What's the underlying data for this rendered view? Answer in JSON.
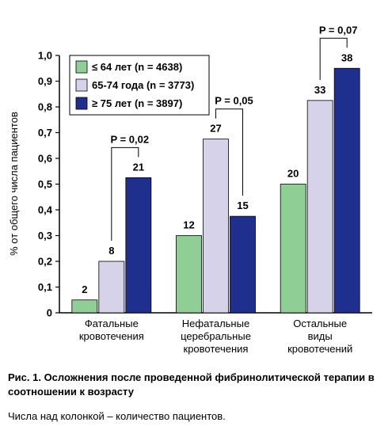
{
  "chart_data": {
    "type": "bar",
    "ylabel": "% от общего числа пациентов",
    "ylim": [
      0,
      1.0
    ],
    "yticks": [
      "0",
      "0,1",
      "0,2",
      "0,3",
      "0,4",
      "0,5",
      "0,6",
      "0,7",
      "0,8",
      "0,9",
      "1,0"
    ],
    "categories": [
      [
        "Фатальные",
        "кровотечения"
      ],
      [
        "Нефатальные",
        "церебральные",
        "кровотечения"
      ],
      [
        "Остальные",
        "виды",
        "кровотечений"
      ]
    ],
    "series": [
      {
        "name": "≤ 64 лет (n = 4638)",
        "color": "#8fcf96",
        "values": [
          0.05,
          0.3,
          0.5
        ],
        "labels": [
          "2",
          "12",
          "20"
        ]
      },
      {
        "name": "65-74 года (n = 3773)",
        "color": "#d6d2ea",
        "values": [
          0.2,
          0.675,
          0.825
        ],
        "labels": [
          "8",
          "27",
          "33"
        ]
      },
      {
        "name": "≥ 75 лет (n = 3897)",
        "color": "#1f2f8e",
        "values": [
          0.525,
          0.375,
          0.95
        ],
        "labels": [
          "21",
          "15",
          "38"
        ]
      }
    ],
    "annotations": [
      {
        "text": "P = 0,02",
        "group": 0,
        "from_series": 1,
        "to_series": 2
      },
      {
        "text": "P = 0,05",
        "group": 1,
        "from_series": 1,
        "to_series": 2
      },
      {
        "text": "P = 0,07",
        "group": 2,
        "from_series": 1,
        "to_series": 2
      }
    ],
    "legend": "top-left"
  },
  "caption": "Рис. 1. Осложнения после проведенной фибринолитической терапии в соотношении к возрасту",
  "note": "Числа над колонкой – количество пациентов."
}
